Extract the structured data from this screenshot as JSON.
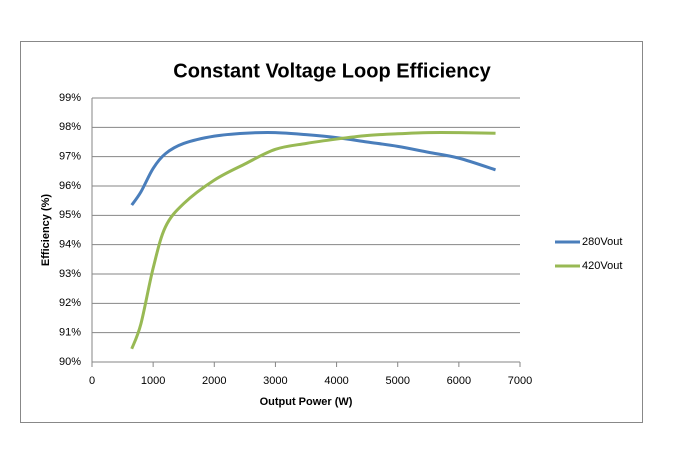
{
  "chart_data": {
    "type": "line",
    "title": "Constant Voltage Loop Efficiency",
    "x_label": "Output Power (W)",
    "y_label": "Efficiency (%)",
    "xlim": [
      0,
      7000
    ],
    "xticks": [
      0,
      1000,
      2000,
      3000,
      4000,
      5000,
      6000,
      7000
    ],
    "ylim": [
      90,
      99
    ],
    "yticks": [
      {
        "value": 90,
        "label": "90%"
      },
      {
        "value": 91,
        "label": "91%"
      },
      {
        "value": 92,
        "label": "92%"
      },
      {
        "value": 93,
        "label": "93%"
      },
      {
        "value": 94,
        "label": "94%"
      },
      {
        "value": 95,
        "label": "95%"
      },
      {
        "value": 96,
        "label": "96%"
      },
      {
        "value": 97,
        "label": "97%"
      },
      {
        "value": 98,
        "label": "98%"
      },
      {
        "value": 99,
        "label": "99%"
      }
    ],
    "grid": true,
    "legend": "right",
    "x": [
      650,
      800,
      1000,
      1200,
      1500,
      2000,
      2500,
      3000,
      3500,
      4000,
      4500,
      5000,
      5500,
      6000,
      6600
    ],
    "series": [
      {
        "name": "280Vout",
        "color": "#4a7ebb",
        "values": [
          95.35,
          95.8,
          96.6,
          97.1,
          97.45,
          97.7,
          97.8,
          97.82,
          97.75,
          97.65,
          97.5,
          97.35,
          97.15,
          96.95,
          96.55
        ]
      },
      {
        "name": "420Vout",
        "color": "#98b954",
        "values": [
          90.45,
          91.3,
          93.2,
          94.6,
          95.4,
          96.2,
          96.75,
          97.25,
          97.45,
          97.6,
          97.72,
          97.78,
          97.82,
          97.82,
          97.8
        ]
      }
    ]
  }
}
